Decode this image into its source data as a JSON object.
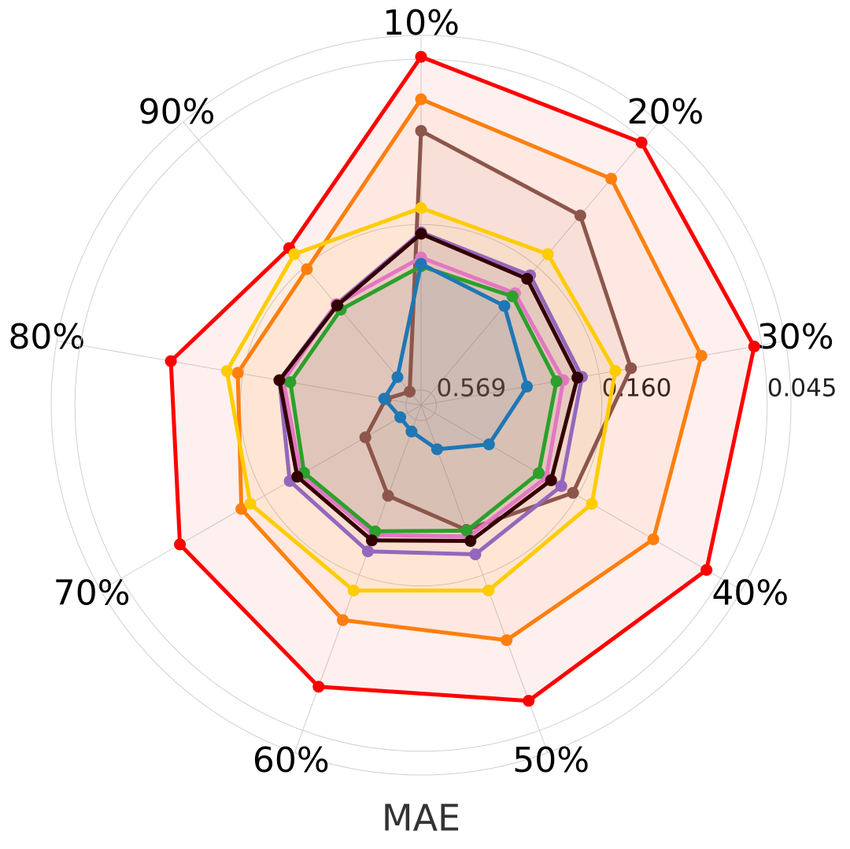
{
  "chart_data": {
    "type": "radar",
    "title": "MAE",
    "categories": [
      "10%",
      "20%",
      "30%",
      "40%",
      "50%",
      "60%",
      "70%",
      "80%",
      "90%"
    ],
    "rscale": "log",
    "rlim": [
      0.64,
      0.0375
    ],
    "rticks": [
      0.569,
      {
        "value": 0.16,
        "label": "0.160"
      },
      0.045
    ],
    "grid": true,
    "series": [
      {
        "color": "#ff0000",
        "values": [
          0.0442,
          0.0461,
          0.0478,
          0.0511,
          0.0573,
          0.0643,
          0.0756,
          0.0912,
          0.1327
        ]
      },
      {
        "color": "#ff7f0e",
        "values": [
          0.0612,
          0.0662,
          0.0721,
          0.0818,
          0.094,
          0.1107,
          0.1303,
          0.1535,
          0.1639
        ]
      },
      {
        "color": "#8c564b",
        "values": [
          0.078,
          0.0957,
          0.1248,
          0.1667,
          0.2312,
          0.3055,
          0.3908,
          0.4864,
          0.5585
        ]
      },
      {
        "color": "#ffcc00",
        "values": [
          0.141,
          0.141,
          0.141,
          0.141,
          0.141,
          0.141,
          0.141,
          0.141,
          0.141
        ]
      },
      {
        "color": "#9467bd",
        "values": [
          0.1698,
          0.1742,
          0.1828,
          0.1849,
          0.1894,
          0.1941,
          0.2,
          0.2123,
          0.2328
        ]
      },
      {
        "color": "#e377c2",
        "values": [
          0.2061,
          0.2086,
          0.2113,
          0.2113,
          0.219,
          0.2218,
          0.2204,
          0.219,
          0.2328
        ]
      },
      {
        "color": "#2ca02c",
        "values": [
          0.2203,
          0.215,
          0.223,
          0.2257,
          0.2298,
          0.2285,
          0.2271,
          0.2312,
          0.2456
        ]
      },
      {
        "color": "#1f77b4",
        "values": [
          0.2163,
          0.2368,
          0.2805,
          0.3508,
          0.4467,
          0.5164,
          0.5322,
          0.4802,
          0.483
        ]
      },
      {
        "color": "#330000",
        "values": [
          0.1718,
          0.1805,
          0.1894,
          0.2023,
          0.2113,
          0.2123,
          0.2138,
          0.2123,
          0.2355
        ]
      }
    ]
  }
}
